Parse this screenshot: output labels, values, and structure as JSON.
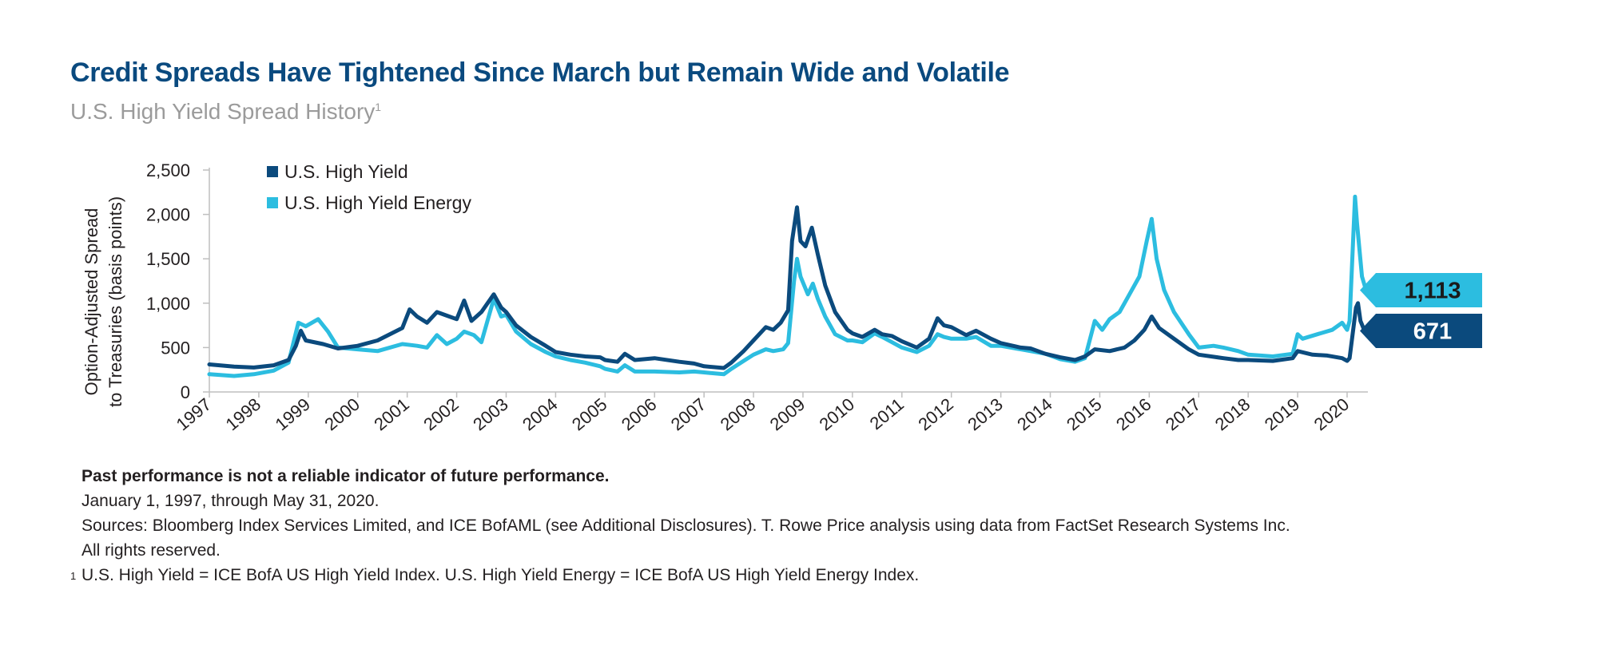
{
  "title": "Credit Spreads Have Tightened Since March but Remain Wide and Volatile",
  "subtitle": "U.S. High Yield Spread History",
  "subtitle_footnote_mark": "1",
  "notes": {
    "disclaimer": "Past performance is not a reliable indicator of future performance.",
    "period": "January 1, 1997, through May 31, 2020.",
    "sources_line1": "Sources: Bloomberg Index Services Limited, and ICE BofAML (see Additional Disclosures). T. Rowe Price analysis using data from FactSet Research Systems Inc.",
    "sources_line2": "All rights reserved.",
    "footnote_mark": "1",
    "footnote": "U.S. High Yield = ICE BofA US High Yield Index. U.S. High Yield Energy = ICE BofA US High Yield Energy Index."
  },
  "colors": {
    "title": "#0a4a7f",
    "hy": "#0b4a7d",
    "energy": "#2cbde0",
    "axis": "#bfbfbf"
  },
  "chart_data": {
    "type": "line",
    "ylabel_line1": "Option-Adjusted Spread",
    "ylabel_line2": "to Treasuries (basis points)",
    "ylim": [
      0,
      2500
    ],
    "yticks": [
      0,
      500,
      1000,
      1500,
      2000,
      2500
    ],
    "ytick_labels": [
      "0",
      "500",
      "1,000",
      "1,500",
      "2,000",
      "2,500"
    ],
    "xlim": [
      1997.0,
      2020.42
    ],
    "xticks": [
      1997,
      1998,
      1999,
      2000,
      2001,
      2002,
      2003,
      2004,
      2005,
      2006,
      2007,
      2008,
      2009,
      2010,
      2011,
      2012,
      2013,
      2014,
      2015,
      2016,
      2017,
      2018,
      2019,
      2020
    ],
    "xtick_labels": [
      "1997",
      "1998",
      "1999",
      "2000",
      "2001",
      "2002",
      "2003",
      "2004",
      "2005",
      "2006",
      "2007",
      "2008",
      "2009",
      "2010",
      "2011",
      "2012",
      "2013",
      "2014",
      "2015",
      "2016",
      "2017",
      "2018",
      "2019",
      "2020"
    ],
    "grid": false,
    "legend_position": "top-left",
    "series": [
      {
        "name": "U.S. High Yield",
        "color": "#0b4a7d",
        "end_label": "671",
        "points": [
          [
            1997.0,
            310
          ],
          [
            1997.5,
            285
          ],
          [
            1997.9,
            275
          ],
          [
            1998.3,
            300
          ],
          [
            1998.6,
            360
          ],
          [
            1998.75,
            520
          ],
          [
            1998.85,
            690
          ],
          [
            1998.95,
            580
          ],
          [
            1999.3,
            540
          ],
          [
            1999.6,
            490
          ],
          [
            2000.0,
            520
          ],
          [
            2000.4,
            580
          ],
          [
            2000.9,
            720
          ],
          [
            2001.05,
            930
          ],
          [
            2001.2,
            850
          ],
          [
            2001.4,
            780
          ],
          [
            2001.6,
            900
          ],
          [
            2001.8,
            860
          ],
          [
            2002.0,
            820
          ],
          [
            2002.15,
            1030
          ],
          [
            2002.3,
            800
          ],
          [
            2002.5,
            900
          ],
          [
            2002.75,
            1100
          ],
          [
            2002.9,
            950
          ],
          [
            2003.0,
            900
          ],
          [
            2003.2,
            750
          ],
          [
            2003.5,
            620
          ],
          [
            2003.8,
            520
          ],
          [
            2004.0,
            450
          ],
          [
            2004.3,
            420
          ],
          [
            2004.6,
            400
          ],
          [
            2004.9,
            390
          ],
          [
            2005.0,
            360
          ],
          [
            2005.25,
            340
          ],
          [
            2005.4,
            430
          ],
          [
            2005.6,
            360
          ],
          [
            2006.0,
            380
          ],
          [
            2006.5,
            340
          ],
          [
            2006.8,
            320
          ],
          [
            2007.0,
            290
          ],
          [
            2007.4,
            270
          ],
          [
            2007.55,
            330
          ],
          [
            2007.8,
            460
          ],
          [
            2008.0,
            580
          ],
          [
            2008.25,
            730
          ],
          [
            2008.4,
            700
          ],
          [
            2008.55,
            780
          ],
          [
            2008.7,
            920
          ],
          [
            2008.78,
            1700
          ],
          [
            2008.88,
            2080
          ],
          [
            2008.95,
            1700
          ],
          [
            2009.05,
            1640
          ],
          [
            2009.18,
            1850
          ],
          [
            2009.3,
            1550
          ],
          [
            2009.45,
            1200
          ],
          [
            2009.65,
            900
          ],
          [
            2009.9,
            700
          ],
          [
            2010.0,
            660
          ],
          [
            2010.2,
            620
          ],
          [
            2010.45,
            700
          ],
          [
            2010.6,
            650
          ],
          [
            2010.8,
            630
          ],
          [
            2011.0,
            570
          ],
          [
            2011.3,
            500
          ],
          [
            2011.55,
            600
          ],
          [
            2011.72,
            830
          ],
          [
            2011.85,
            750
          ],
          [
            2012.0,
            730
          ],
          [
            2012.3,
            640
          ],
          [
            2012.5,
            690
          ],
          [
            2012.8,
            600
          ],
          [
            2013.0,
            550
          ],
          [
            2013.4,
            500
          ],
          [
            2013.6,
            490
          ],
          [
            2013.9,
            430
          ],
          [
            2014.2,
            390
          ],
          [
            2014.5,
            360
          ],
          [
            2014.7,
            400
          ],
          [
            2014.9,
            480
          ],
          [
            2015.2,
            460
          ],
          [
            2015.5,
            500
          ],
          [
            2015.7,
            580
          ],
          [
            2015.9,
            700
          ],
          [
            2016.05,
            850
          ],
          [
            2016.2,
            720
          ],
          [
            2016.5,
            600
          ],
          [
            2016.8,
            480
          ],
          [
            2017.0,
            420
          ],
          [
            2017.5,
            380
          ],
          [
            2017.8,
            360
          ],
          [
            2018.0,
            360
          ],
          [
            2018.5,
            350
          ],
          [
            2018.9,
            380
          ],
          [
            2019.0,
            460
          ],
          [
            2019.3,
            420
          ],
          [
            2019.6,
            410
          ],
          [
            2019.9,
            380
          ],
          [
            2020.0,
            350
          ],
          [
            2020.05,
            380
          ],
          [
            2020.18,
            950
          ],
          [
            2020.22,
            1000
          ],
          [
            2020.27,
            800
          ],
          [
            2020.33,
            720
          ],
          [
            2020.4,
            671
          ]
        ]
      },
      {
        "name": "U.S. High Yield Energy",
        "color": "#2cbde0",
        "end_label": "1,113",
        "points": [
          [
            1997.0,
            200
          ],
          [
            1997.5,
            180
          ],
          [
            1997.9,
            200
          ],
          [
            1998.3,
            240
          ],
          [
            1998.6,
            330
          ],
          [
            1998.8,
            780
          ],
          [
            1998.95,
            740
          ],
          [
            1999.2,
            820
          ],
          [
            1999.4,
            680
          ],
          [
            1999.6,
            500
          ],
          [
            2000.0,
            480
          ],
          [
            2000.4,
            460
          ],
          [
            2000.9,
            540
          ],
          [
            2001.2,
            520
          ],
          [
            2001.4,
            500
          ],
          [
            2001.6,
            640
          ],
          [
            2001.8,
            540
          ],
          [
            2002.0,
            600
          ],
          [
            2002.15,
            680
          ],
          [
            2002.35,
            640
          ],
          [
            2002.5,
            560
          ],
          [
            2002.75,
            1050
          ],
          [
            2002.9,
            850
          ],
          [
            2003.0,
            870
          ],
          [
            2003.2,
            680
          ],
          [
            2003.5,
            540
          ],
          [
            2003.8,
            450
          ],
          [
            2004.0,
            400
          ],
          [
            2004.3,
            360
          ],
          [
            2004.6,
            330
          ],
          [
            2004.9,
            290
          ],
          [
            2005.0,
            260
          ],
          [
            2005.25,
            230
          ],
          [
            2005.4,
            300
          ],
          [
            2005.6,
            230
          ],
          [
            2006.0,
            230
          ],
          [
            2006.5,
            220
          ],
          [
            2006.8,
            230
          ],
          [
            2007.0,
            220
          ],
          [
            2007.4,
            200
          ],
          [
            2007.55,
            260
          ],
          [
            2007.8,
            350
          ],
          [
            2008.0,
            420
          ],
          [
            2008.25,
            480
          ],
          [
            2008.4,
            460
          ],
          [
            2008.6,
            480
          ],
          [
            2008.7,
            550
          ],
          [
            2008.82,
            1250
          ],
          [
            2008.88,
            1500
          ],
          [
            2008.95,
            1300
          ],
          [
            2009.1,
            1100
          ],
          [
            2009.2,
            1220
          ],
          [
            2009.3,
            1050
          ],
          [
            2009.45,
            850
          ],
          [
            2009.65,
            650
          ],
          [
            2009.9,
            580
          ],
          [
            2010.0,
            580
          ],
          [
            2010.2,
            560
          ],
          [
            2010.45,
            660
          ],
          [
            2010.6,
            620
          ],
          [
            2010.8,
            560
          ],
          [
            2011.0,
            500
          ],
          [
            2011.3,
            450
          ],
          [
            2011.55,
            520
          ],
          [
            2011.72,
            650
          ],
          [
            2011.85,
            620
          ],
          [
            2012.0,
            600
          ],
          [
            2012.3,
            600
          ],
          [
            2012.5,
            620
          ],
          [
            2012.8,
            520
          ],
          [
            2013.0,
            520
          ],
          [
            2013.4,
            480
          ],
          [
            2013.6,
            460
          ],
          [
            2013.9,
            430
          ],
          [
            2014.2,
            370
          ],
          [
            2014.5,
            340
          ],
          [
            2014.7,
            380
          ],
          [
            2014.9,
            800
          ],
          [
            2015.05,
            700
          ],
          [
            2015.2,
            820
          ],
          [
            2015.4,
            900
          ],
          [
            2015.6,
            1100
          ],
          [
            2015.8,
            1300
          ],
          [
            2015.95,
            1700
          ],
          [
            2016.05,
            1950
          ],
          [
            2016.15,
            1500
          ],
          [
            2016.3,
            1150
          ],
          [
            2016.5,
            900
          ],
          [
            2016.8,
            650
          ],
          [
            2017.0,
            500
          ],
          [
            2017.3,
            520
          ],
          [
            2017.5,
            500
          ],
          [
            2017.8,
            460
          ],
          [
            2018.0,
            420
          ],
          [
            2018.5,
            400
          ],
          [
            2018.9,
            430
          ],
          [
            2019.0,
            650
          ],
          [
            2019.1,
            600
          ],
          [
            2019.4,
            650
          ],
          [
            2019.7,
            700
          ],
          [
            2019.9,
            780
          ],
          [
            2020.0,
            700
          ],
          [
            2020.05,
            800
          ],
          [
            2020.16,
            2200
          ],
          [
            2020.2,
            1900
          ],
          [
            2020.25,
            1600
          ],
          [
            2020.3,
            1300
          ],
          [
            2020.4,
            1113
          ]
        ]
      }
    ]
  }
}
